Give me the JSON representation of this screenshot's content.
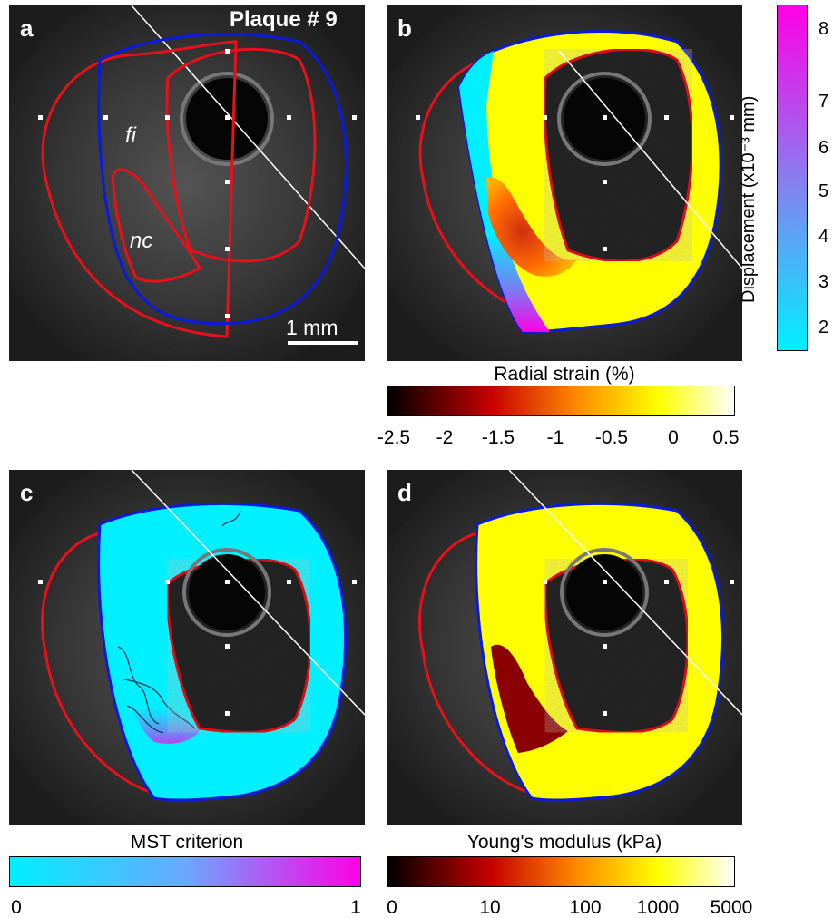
{
  "panels": {
    "a": {
      "label": "a",
      "title": "Plaque # 9",
      "annot_fi": "fi",
      "annot_nc": "nc",
      "scalebar": "1 mm"
    },
    "b": {
      "label": "b"
    },
    "c": {
      "label": "c"
    },
    "d": {
      "label": "d"
    }
  },
  "colorbars": {
    "displacement": {
      "title": "Displacement (x10⁻³ mm)",
      "ticks": [
        "2",
        "3",
        "4",
        "5",
        "6",
        "7",
        "8"
      ],
      "range": [
        1.5,
        8.4
      ],
      "colors": [
        "#00f0ff",
        "#ff00e6"
      ]
    },
    "radial_strain": {
      "title": "Radial strain (%)",
      "ticks": [
        "-2.5",
        "-2",
        "-1.5",
        "-1",
        "-0.5",
        "0",
        "0.5"
      ],
      "colormap": "hot"
    },
    "mst": {
      "title": "MST criterion",
      "ticks": [
        "0",
        "1"
      ],
      "colors": [
        "#00f0ff",
        "#ff00e6"
      ]
    },
    "youngs": {
      "title": "Young's modulus (kPa)",
      "ticks": [
        "0",
        "10",
        "100",
        "1000",
        "5000"
      ],
      "colormap": "hot"
    }
  },
  "colors": {
    "outer_contour": "#0a1adf",
    "lumen_contour": "#e8101a",
    "necrotic_contour": "#e8101a",
    "ultrasound_bg": "#2a2a2a"
  }
}
